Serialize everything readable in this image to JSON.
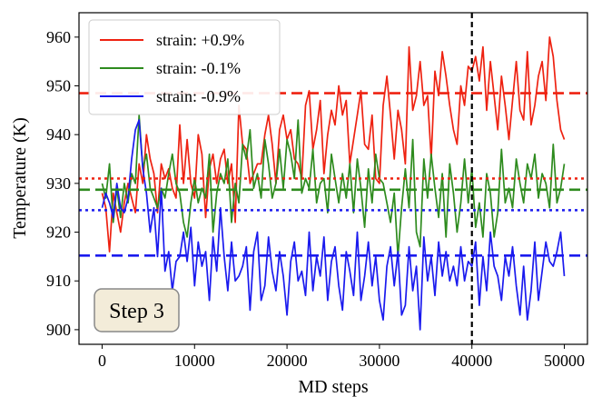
{
  "chart_data": {
    "type": "line",
    "xlabel": "MD steps",
    "ylabel": "Temperature (K)",
    "xlim": [
      -2500,
      52500
    ],
    "ylim": [
      897,
      965
    ],
    "xticks": [
      0,
      10000,
      20000,
      30000,
      40000,
      50000
    ],
    "yticks": [
      900,
      910,
      920,
      930,
      940,
      950,
      960
    ],
    "legend_position": "top-left",
    "annotation": "Step 3",
    "vertical_line": {
      "x": 40000,
      "color": "#000000",
      "style": "dashed"
    },
    "x": [
      0,
      400,
      800,
      1200,
      1600,
      2000,
      2400,
      2800,
      3200,
      3600,
      4000,
      4400,
      4800,
      5200,
      5600,
      6000,
      6400,
      6800,
      7200,
      7600,
      8000,
      8400,
      8800,
      9200,
      9600,
      10000,
      10400,
      10800,
      11200,
      11600,
      12000,
      12400,
      12800,
      13200,
      13600,
      14000,
      14400,
      14800,
      15200,
      15600,
      16000,
      16400,
      16800,
      17200,
      17600,
      18000,
      18400,
      18800,
      19200,
      19600,
      20000,
      20400,
      20800,
      21200,
      21600,
      22000,
      22400,
      22800,
      23200,
      23600,
      24000,
      24400,
      24800,
      25200,
      25600,
      26000,
      26400,
      26800,
      27200,
      27600,
      28000,
      28400,
      28800,
      29200,
      29600,
      30000,
      30400,
      30800,
      31200,
      31600,
      32000,
      32400,
      32800,
      33200,
      33600,
      34000,
      34400,
      34800,
      35200,
      35600,
      36000,
      36400,
      36800,
      37200,
      37600,
      38000,
      38400,
      38800,
      39200,
      39600,
      40000,
      40400,
      40800,
      41200,
      41600,
      42000,
      42400,
      42800,
      43200,
      43600,
      44000,
      44400,
      44800,
      45200,
      45600,
      46000,
      46400,
      46800,
      47200,
      47600,
      48000,
      48400,
      48800,
      49200,
      49600,
      50000
    ],
    "series": [
      {
        "name": "strain: +0.9%",
        "color": "#ee2211",
        "mean": 948.5,
        "mean_style": "dashed",
        "secondary": 931,
        "secondary_style": "dotted",
        "values": [
          928,
          925,
          916,
          928,
          924,
          920,
          926,
          930,
          927,
          924,
          934,
          930,
          940,
          935,
          932,
          924,
          934,
          931,
          933,
          929,
          927,
          942,
          930,
          939,
          930,
          927,
          940,
          936,
          923,
          933,
          936,
          930,
          935,
          937,
          930,
          934,
          922,
          946,
          938,
          937,
          930,
          932,
          934,
          934,
          940,
          944,
          938,
          930,
          941,
          944,
          939,
          941,
          935,
          934,
          931,
          946,
          949,
          937,
          941,
          947,
          932,
          940,
          945,
          942,
          950,
          944,
          947,
          934,
          939,
          944,
          949,
          938,
          937,
          944,
          931,
          930,
          946,
          952,
          944,
          935,
          945,
          941,
          934,
          958,
          945,
          948,
          955,
          946,
          948,
          935,
          953,
          948,
          957,
          952,
          946,
          941,
          938,
          950,
          946,
          954,
          953,
          956,
          951,
          958,
          945,
          955,
          948,
          941,
          952,
          946,
          939,
          947,
          955,
          945,
          943,
          957,
          942,
          946,
          952,
          955,
          947,
          960,
          956,
          947,
          941,
          939
        ]
      },
      {
        "name": "strain: -0.1%",
        "color": "#2e8b1e",
        "mean": 928.7,
        "mean_style": "dashed",
        "secondary": null,
        "secondary_style": null,
        "values": [
          930,
          927,
          934,
          922,
          929,
          923,
          930,
          926,
          932,
          930,
          944,
          933,
          936,
          929,
          927,
          925,
          929,
          927,
          932,
          936,
          930,
          928,
          922,
          919,
          926,
          931,
          926,
          929,
          927,
          936,
          920,
          928,
          932,
          930,
          935,
          922,
          930,
          926,
          938,
          935,
          941,
          929,
          932,
          927,
          939,
          934,
          927,
          930,
          937,
          929,
          939,
          936,
          931,
          943,
          928,
          931,
          929,
          937,
          926,
          930,
          931,
          924,
          936,
          931,
          926,
          932,
          927,
          934,
          924,
          935,
          929,
          921,
          933,
          926,
          936,
          931,
          930,
          926,
          922,
          928,
          915,
          925,
          933,
          925,
          939,
          920,
          917,
          935,
          927,
          936,
          929,
          923,
          932,
          919,
          934,
          928,
          920,
          926,
          935,
          926,
          933,
          921,
          926,
          919,
          932,
          928,
          919,
          924,
          937,
          926,
          929,
          925,
          935,
          930,
          926,
          934,
          931,
          936,
          927,
          932,
          930,
          925,
          938,
          926,
          929,
          934
        ]
      },
      {
        "name": "strain: -0.9%",
        "color": "#1a1aee",
        "mean": 915.2,
        "mean_style": "dashed",
        "secondary": 924.5,
        "secondary_style": "dotted",
        "values": [
          925,
          928,
          926,
          923,
          930,
          925,
          924,
          927,
          935,
          941,
          943,
          933,
          928,
          920,
          925,
          915,
          929,
          912,
          916,
          908,
          914,
          915,
          920,
          914,
          921,
          909,
          918,
          913,
          916,
          906,
          919,
          912,
          925,
          915,
          908,
          918,
          910,
          911,
          913,
          917,
          904,
          916,
          920,
          906,
          909,
          919,
          912,
          908,
          916,
          911,
          903,
          914,
          918,
          910,
          912,
          907,
          920,
          908,
          915,
          911,
          919,
          906,
          914,
          917,
          909,
          904,
          916,
          912,
          907,
          920,
          906,
          911,
          918,
          909,
          915,
          906,
          902,
          913,
          917,
          909,
          916,
          903,
          905,
          917,
          908,
          913,
          900,
          919,
          910,
          915,
          907,
          918,
          911,
          916,
          910,
          913,
          909,
          917,
          910,
          914,
          913,
          918,
          905,
          915,
          908,
          920,
          913,
          911,
          906,
          915,
          911,
          917,
          909,
          903,
          913,
          902,
          908,
          918,
          906,
          912,
          918,
          914,
          913,
          916,
          920,
          911
        ]
      }
    ]
  }
}
